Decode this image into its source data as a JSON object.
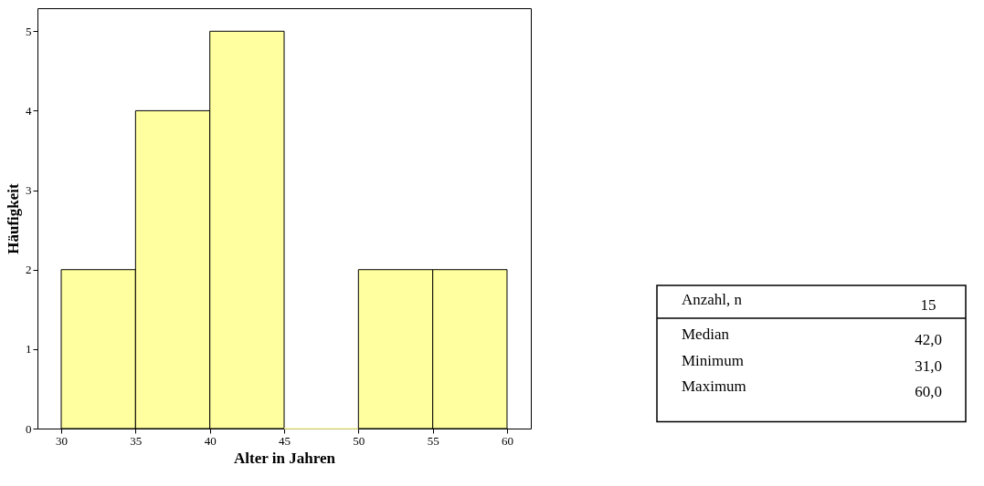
{
  "chart_data": {
    "type": "histogram",
    "bins": [
      30,
      35,
      40,
      45,
      50,
      55,
      60
    ],
    "values": [
      2,
      4,
      5,
      0,
      2,
      2
    ],
    "color": "#ffffa0",
    "xlabel": "Alter in Jahren",
    "ylabel": "Häufigkeit",
    "xlim": [
      28.4,
      61.6
    ],
    "xticks": [
      30,
      35,
      40,
      45,
      50,
      55,
      60
    ],
    "ylim": [
      0,
      5.29
    ],
    "yticks": [
      0,
      1,
      2,
      3,
      4,
      5
    ],
    "grid": false,
    "annotations": [
      "Anzahl, n",
      "15",
      "Median",
      "42,0",
      "Minimum",
      "31,0",
      "Maximum",
      "60,0"
    ]
  }
}
